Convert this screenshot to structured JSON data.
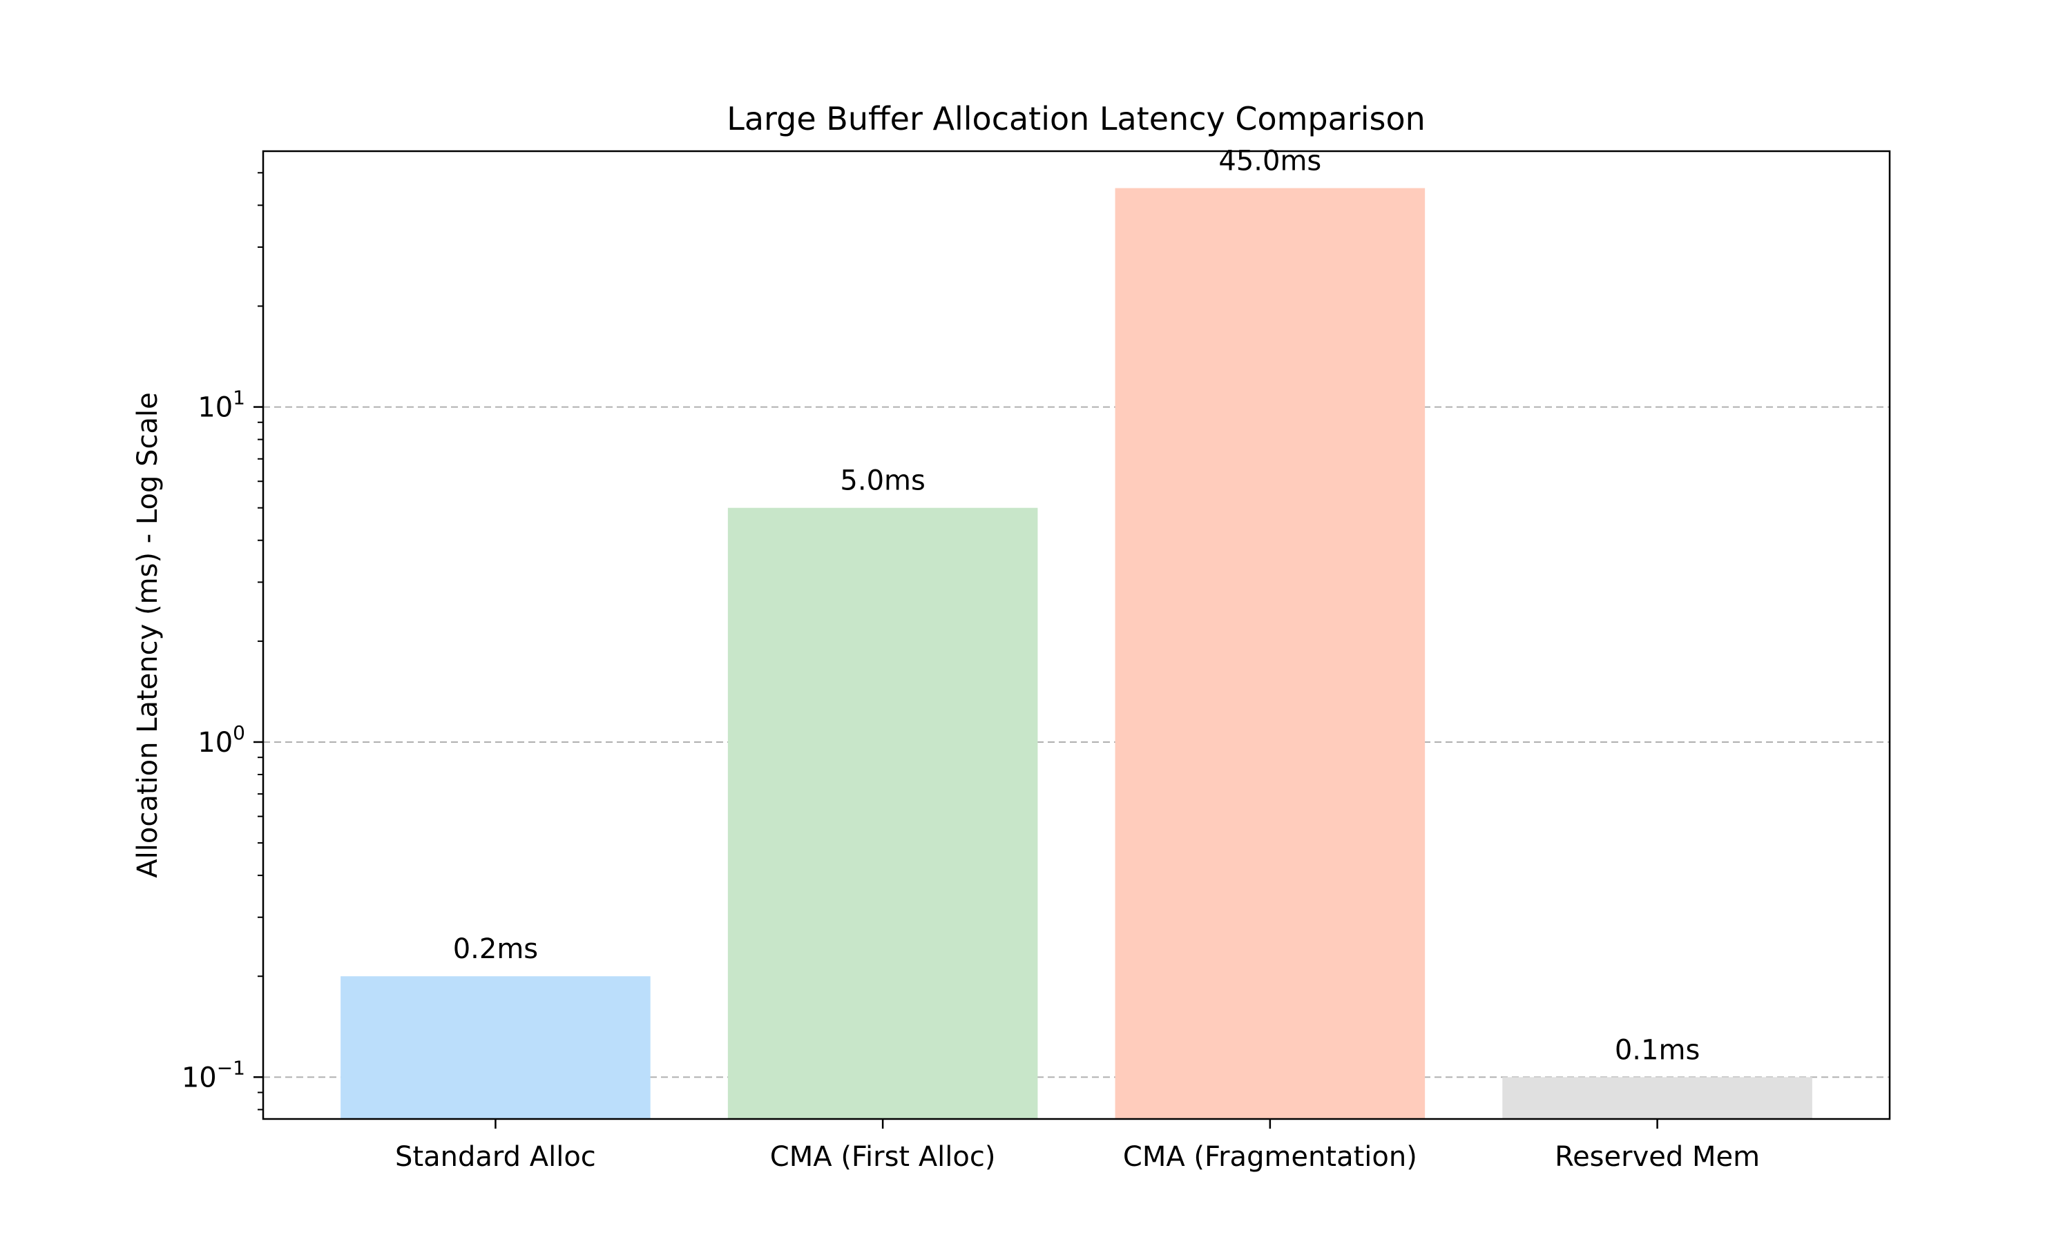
{
  "chart_data": {
    "type": "bar",
    "title": "Large Buffer Allocation Latency Comparison",
    "xlabel": "",
    "ylabel": "Allocation Latency (ms) - Log Scale",
    "yscale": "log",
    "ylim": [
      0.075,
      58
    ],
    "grid": "y-dashed",
    "categories": [
      "Standard Alloc",
      "CMA (First Alloc)",
      "CMA (Fragmentation)",
      "Reserved Mem"
    ],
    "values": [
      0.2,
      5.0,
      45.0,
      0.1
    ],
    "data_labels": [
      "0.2ms",
      "5.0ms",
      "45.0ms",
      "0.1ms"
    ],
    "colors": [
      "#bbdefb",
      "#c8e6c9",
      "#ffccbc",
      "#e0e0e0"
    ],
    "yticks": [
      {
        "value": 0.1,
        "base": "10",
        "exp": "−1"
      },
      {
        "value": 1,
        "base": "10",
        "exp": "0"
      },
      {
        "value": 10,
        "base": "10",
        "exp": "1"
      }
    ]
  }
}
